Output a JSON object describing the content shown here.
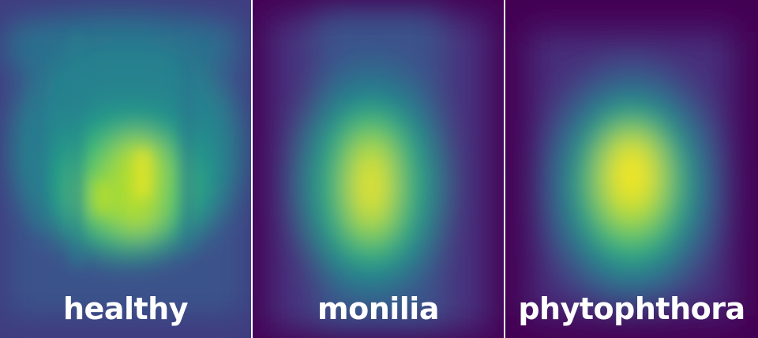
{
  "panels": [
    {
      "label": "healthy"
    },
    {
      "label": "monilia"
    },
    {
      "label": "phytophthora"
    }
  ],
  "colormap": "viridis",
  "colors": {
    "low": "#440154",
    "mid_low": "#3b528b",
    "mid": "#21918c",
    "mid_high": "#5ec962",
    "high": "#fde725"
  }
}
